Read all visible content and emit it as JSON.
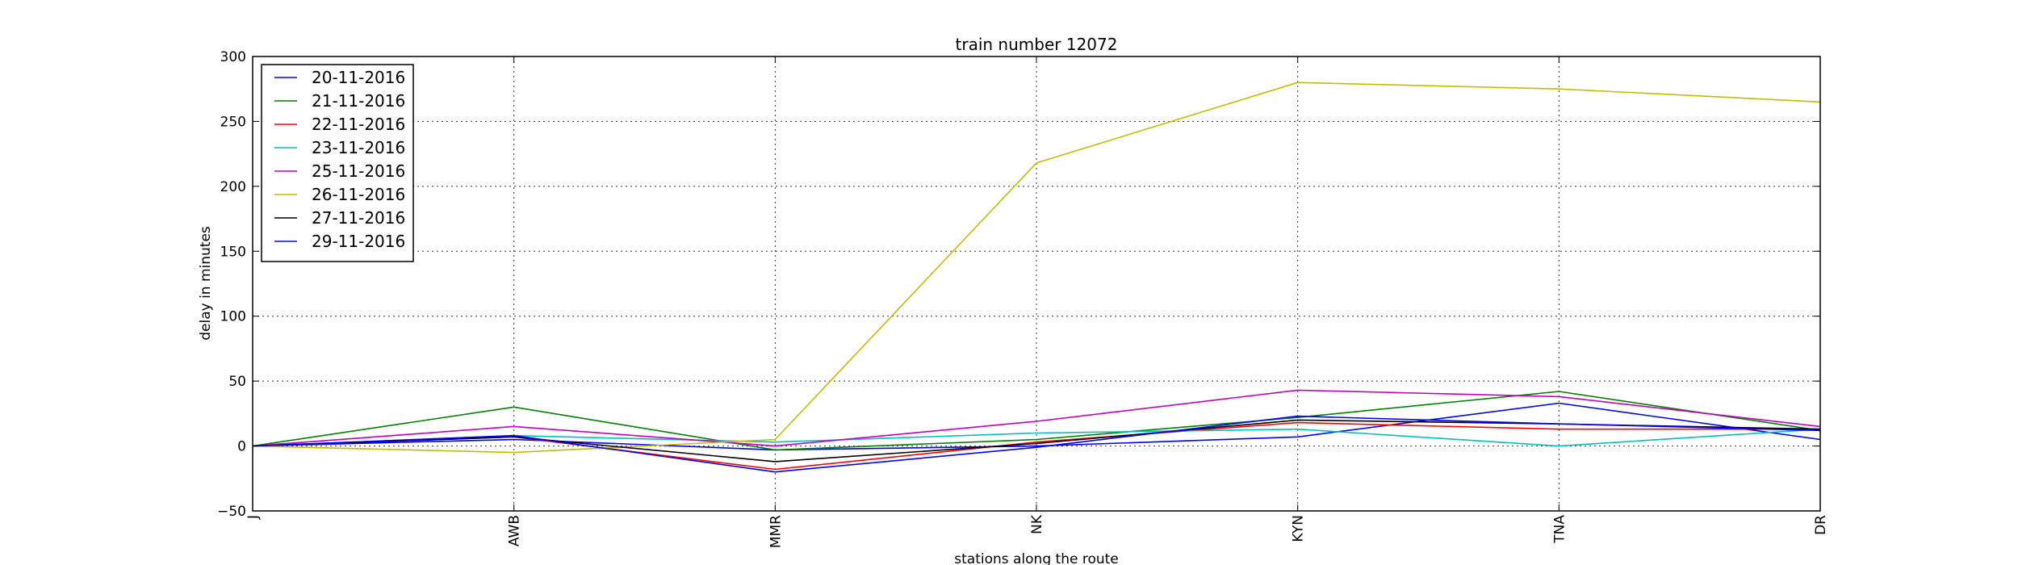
{
  "chart_data": {
    "type": "line",
    "title": "train number 12072",
    "xlabel": "stations along the route",
    "ylabel": "delay in minutes",
    "categories": [
      "J",
      "AWB",
      "MMR",
      "NK",
      "KYN",
      "TNA",
      "DR"
    ],
    "ylim": [
      -50,
      300
    ],
    "yticks": [
      -50,
      0,
      50,
      100,
      150,
      200,
      250,
      300
    ],
    "grid": true,
    "legend_position": "top-left",
    "series": [
      {
        "name": "20-11-2016",
        "color": "#0000ff",
        "values": [
          0,
          5,
          -3,
          0,
          7,
          33,
          5
        ]
      },
      {
        "name": "21-11-2016",
        "color": "#008000",
        "values": [
          0,
          30,
          -3,
          5,
          22,
          42,
          12
        ]
      },
      {
        "name": "22-11-2016",
        "color": "#ff0000",
        "values": [
          0,
          7,
          -18,
          3,
          18,
          13,
          13
        ]
      },
      {
        "name": "23-11-2016",
        "color": "#00bfbf",
        "values": [
          0,
          8,
          3,
          10,
          13,
          0,
          13
        ]
      },
      {
        "name": "25-11-2016",
        "color": "#bf00bf",
        "values": [
          0,
          15,
          0,
          19,
          43,
          38,
          15
        ]
      },
      {
        "name": "26-11-2016",
        "color": "#bfbf00",
        "values": [
          0,
          -5,
          5,
          218,
          280,
          275,
          265
        ]
      },
      {
        "name": "27-11-2016",
        "color": "#000000",
        "values": [
          0,
          7,
          -12,
          2,
          20,
          17,
          13
        ]
      },
      {
        "name": "29-11-2016",
        "color": "#0000ff",
        "values": [
          0,
          8,
          -20,
          -1,
          23,
          17,
          12
        ]
      }
    ]
  }
}
